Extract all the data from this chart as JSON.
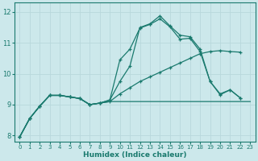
{
  "xlabel": "Humidex (Indice chaleur)",
  "ylabel": "",
  "bg_color": "#cce8eb",
  "line_color": "#1a7a6e",
  "grid_color": "#b8d8dc",
  "xlim": [
    -0.5,
    23.5
  ],
  "ylim": [
    7.8,
    12.3
  ],
  "xticks": [
    0,
    1,
    2,
    3,
    4,
    5,
    6,
    7,
    8,
    9,
    10,
    11,
    12,
    13,
    14,
    15,
    16,
    17,
    18,
    19,
    20,
    21,
    22,
    23
  ],
  "yticks": [
    8,
    9,
    10,
    11,
    12
  ],
  "lines": [
    {
      "x": [
        0,
        1,
        2,
        3,
        4,
        5,
        6,
        7,
        8,
        9,
        10,
        11,
        12,
        13,
        14,
        15,
        16,
        17,
        18,
        19,
        20,
        21,
        22,
        23
      ],
      "y": [
        7.95,
        8.55,
        8.95,
        9.3,
        9.3,
        9.25,
        9.2,
        9.0,
        9.05,
        9.1,
        9.1,
        9.1,
        9.1,
        9.1,
        9.1,
        9.1,
        9.1,
        9.1,
        9.1,
        9.1,
        9.1,
        9.1,
        9.1,
        9.1
      ],
      "marker": false,
      "lw": 0.9
    },
    {
      "x": [
        0,
        1,
        2,
        3,
        4,
        5,
        6,
        7,
        8,
        9,
        10,
        11,
        12,
        13,
        14,
        15,
        16,
        17,
        18,
        19,
        20,
        21,
        22,
        23
      ],
      "y": [
        7.95,
        8.55,
        8.95,
        9.3,
        9.3,
        9.25,
        9.2,
        9.0,
        9.05,
        9.1,
        9.35,
        9.55,
        9.75,
        9.9,
        10.05,
        10.2,
        10.35,
        10.5,
        10.65,
        10.72,
        10.75,
        10.72,
        10.7,
        null
      ],
      "marker": true,
      "lw": 0.9
    },
    {
      "x": [
        0,
        1,
        2,
        3,
        4,
        5,
        6,
        7,
        8,
        9,
        10,
        11,
        12,
        13,
        14,
        15,
        16,
        17,
        18,
        19,
        20,
        21,
        22,
        23
      ],
      "y": [
        7.95,
        8.55,
        8.95,
        9.3,
        9.3,
        9.25,
        9.2,
        9.0,
        9.05,
        9.15,
        10.45,
        10.8,
        11.48,
        11.6,
        11.78,
        11.52,
        11.12,
        11.15,
        10.72,
        9.75,
        9.32,
        9.48,
        9.22,
        null
      ],
      "marker": true,
      "lw": 0.9
    },
    {
      "x": [
        0,
        1,
        2,
        3,
        4,
        5,
        6,
        7,
        8,
        9,
        10,
        11,
        12,
        13,
        14,
        15,
        16,
        17,
        18,
        19,
        20,
        21,
        22
      ],
      "y": [
        7.95,
        8.55,
        8.95,
        9.3,
        9.3,
        9.25,
        9.2,
        9.0,
        9.05,
        9.15,
        9.75,
        10.25,
        11.5,
        11.62,
        11.88,
        11.55,
        11.25,
        11.2,
        10.8,
        9.75,
        9.35,
        9.48,
        9.22
      ],
      "marker": true,
      "lw": 0.9
    }
  ]
}
